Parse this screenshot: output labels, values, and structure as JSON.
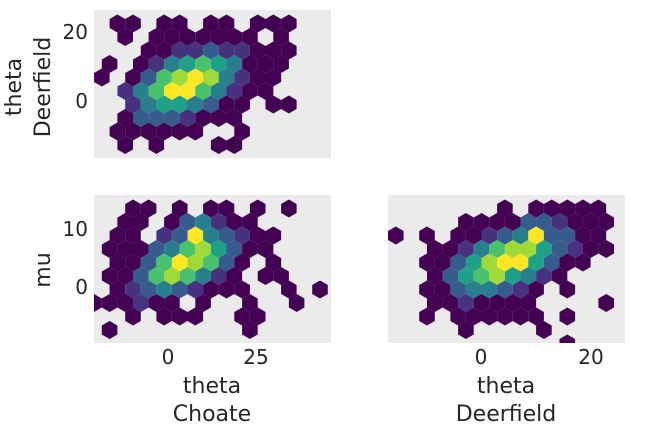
{
  "chart_data": {
    "type": "hexbin-pairplot",
    "colormap": [
      "#440154",
      "#46327e",
      "#365c8d",
      "#277f8e",
      "#1fa187",
      "#4ac16d",
      "#a0da39",
      "#fde725"
    ],
    "background_color": "#ebebeb",
    "grid": false,
    "panels": [
      {
        "id": "deerfield-vs-choate",
        "xlabel": [
          "",
          ""
        ],
        "ylabel": [
          "theta",
          "Deerfield"
        ],
        "xlim": [
          -20,
          44
        ],
        "ylim": [
          -17,
          26
        ],
        "xticks": [],
        "yticks": [
          0,
          20
        ],
        "ytick_labels": [
          "0",
          "20"
        ],
        "hexbin": {
          "x_center": 5,
          "y_center": 4.5,
          "x_sd": 10,
          "y_sd": 7,
          "rho": 0.5,
          "peak": [
            6,
            7
          ],
          "x_range": [
            -13,
            33
          ],
          "y_range": [
            -15,
            24
          ],
          "outliers": [
            [
              -12,
              22
            ],
            [
              -4,
              19
            ],
            [
              11,
              24
            ],
            [
              -16,
              12
            ],
            [
              -17,
              7
            ],
            [
              27,
              12
            ],
            [
              31,
              11
            ],
            [
              17,
              -15
            ],
            [
              -12,
              -8
            ]
          ]
        }
      },
      {
        "id": "mu-vs-choate",
        "xlabel": [
          "theta",
          "Choate"
        ],
        "ylabel": [
          "mu",
          ""
        ],
        "xlim": [
          -20,
          44
        ],
        "ylim": [
          -9.5,
          16
        ],
        "xticks": [
          0,
          25
        ],
        "xtick_labels": [
          "0",
          "25"
        ],
        "yticks": [
          0,
          10
        ],
        "ytick_labels": [
          "0",
          "10"
        ],
        "hexbin": {
          "x_center": 5,
          "y_center": 4.5,
          "x_sd": 9,
          "y_sd": 4,
          "rho": 0.55,
          "peak": [
            8,
            9
          ],
          "x_range": [
            -17,
            34
          ],
          "y_range": [
            -8,
            14
          ],
          "outliers": [
            [
              -20,
              -2.7
            ],
            [
              24,
              14.5
            ],
            [
              35,
              -1.3
            ],
            [
              42,
              0
            ],
            [
              31,
              0.5
            ],
            [
              22,
              -1
            ]
          ]
        }
      },
      {
        "id": "mu-vs-deerfield",
        "xlabel": [
          "theta",
          "Deerfield"
        ],
        "ylabel": [
          "",
          ""
        ],
        "xlim": [
          -17,
          26
        ],
        "ylim": [
          -9.5,
          16
        ],
        "xticks": [
          0,
          20
        ],
        "xtick_labels": [
          "0",
          "20"
        ],
        "yticks": [],
        "hexbin": {
          "x_center": 4.5,
          "y_center": 4.5,
          "x_sd": 7,
          "y_sd": 4,
          "rho": 0.55,
          "peak": [
            10,
            9
          ],
          "x_range": [
            -11,
            23
          ],
          "y_range": [
            -8,
            14
          ],
          "outliers": [
            [
              -15,
              9
            ],
            [
              20,
              10
            ],
            [
              15,
              -8.5
            ],
            [
              -2,
              -7
            ]
          ]
        }
      }
    ]
  }
}
